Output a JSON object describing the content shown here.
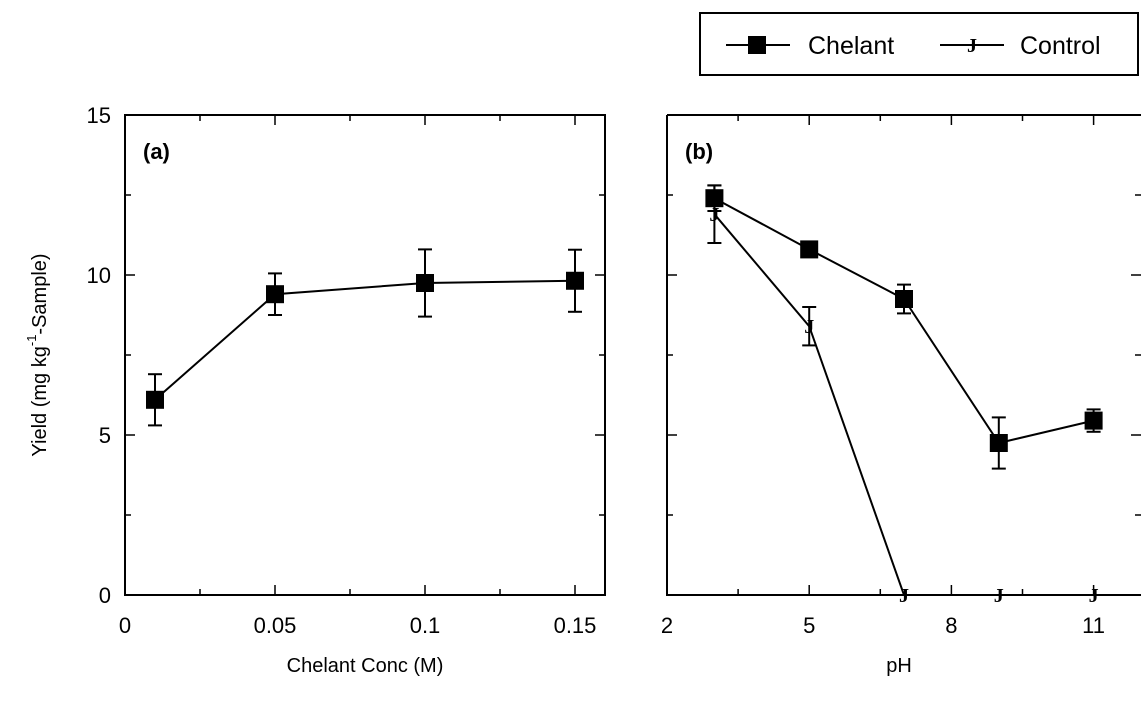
{
  "legend": {
    "position": "top-right",
    "entries": [
      {
        "label": "Chelant",
        "marker": "filled-square"
      },
      {
        "label": "Control",
        "marker": "J"
      }
    ]
  },
  "y_axis": {
    "label_main": "Yield (mg kg",
    "label_sup": "-1",
    "label_tail": "-Sample)",
    "ticks": [
      "0",
      "5",
      "10",
      "15"
    ]
  },
  "chart_data": [
    {
      "type": "line",
      "panel_label": "(a)",
      "xlabel": "Chelant Conc (M)",
      "ylabel": "Yield (mg kg-1-Sample)",
      "xlim": [
        0,
        0.16
      ],
      "ylim": [
        0,
        15
      ],
      "x_ticks": [
        0,
        0.05,
        0.1,
        0.15
      ],
      "x_tick_labels": [
        "0",
        "0.05",
        "0.1",
        "0.15"
      ],
      "y_ticks": [
        0,
        5,
        10,
        15
      ],
      "grid": false,
      "series": [
        {
          "name": "Chelant",
          "marker": "filled-square",
          "x": [
            0.01,
            0.05,
            0.1,
            0.15
          ],
          "y": [
            6.1,
            9.4,
            9.75,
            9.82
          ],
          "err": [
            0.8,
            0.65,
            1.05,
            0.97
          ]
        }
      ]
    },
    {
      "type": "line",
      "panel_label": "(b)",
      "xlabel": "pH",
      "ylabel": "",
      "xlim": [
        2,
        12
      ],
      "ylim": [
        0,
        15
      ],
      "x_ticks": [
        2,
        5,
        8,
        11
      ],
      "x_tick_labels": [
        "2",
        "5",
        "8",
        "11"
      ],
      "y_ticks": [
        0,
        5,
        10,
        15
      ],
      "grid": false,
      "series": [
        {
          "name": "Chelant",
          "marker": "filled-square",
          "x": [
            3,
            5,
            7,
            9,
            11
          ],
          "y": [
            12.4,
            10.8,
            9.25,
            4.75,
            5.45
          ],
          "err": [
            0.4,
            0.2,
            0.45,
            0.8,
            0.35
          ]
        },
        {
          "name": "Control",
          "marker": "J",
          "x": [
            3,
            5,
            7,
            9,
            11
          ],
          "y": [
            11.9,
            8.4,
            0,
            0,
            0
          ],
          "err": [
            0.9,
            0.6,
            0,
            0,
            0
          ]
        }
      ]
    }
  ]
}
